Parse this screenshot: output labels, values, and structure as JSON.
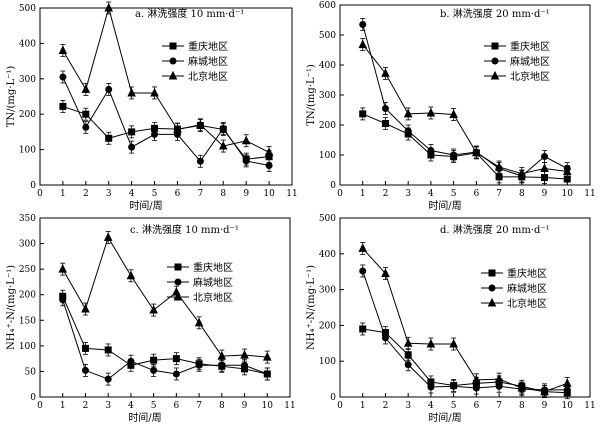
{
  "chart_data": [
    {
      "type": "line",
      "title": "a. 淋洗强度 10 mm·d⁻¹",
      "xlabel": "时间/周",
      "ylabel": "TN/(mg·L⁻¹)",
      "xlim": [
        0,
        11
      ],
      "ylim": [
        0,
        500
      ],
      "xticks": [
        0,
        1,
        2,
        3,
        4,
        5,
        6,
        7,
        8,
        9,
        10,
        11
      ],
      "yticks": [
        0,
        100,
        200,
        300,
        400,
        500
      ],
      "x": [
        1,
        2,
        3,
        4,
        5,
        6,
        7,
        8,
        9,
        10
      ],
      "legend_position": "top-right",
      "series": [
        {
          "name": "重庆地区",
          "marker": "square",
          "values": [
            222,
            200,
            132,
            150,
            160,
            158,
            168,
            157,
            73,
            80
          ]
        },
        {
          "name": "麻城地区",
          "marker": "circle",
          "values": [
            305,
            163,
            270,
            107,
            143,
            143,
            67,
            160,
            68,
            55
          ]
        },
        {
          "name": "北京地区",
          "marker": "triangle",
          "values": [
            380,
            270,
            500,
            260,
            260,
            157,
            170,
            110,
            125,
            92
          ]
        }
      ]
    },
    {
      "type": "line",
      "title": "b. 淋洗强度 20 mm·d⁻¹",
      "xlabel": "时间/周",
      "ylabel": "TN/(mg·L⁻¹)",
      "xlim": [
        0,
        11
      ],
      "ylim": [
        0,
        600
      ],
      "xticks": [
        0,
        1,
        2,
        3,
        4,
        5,
        6,
        7,
        8,
        9,
        10,
        11
      ],
      "yticks": [
        0,
        100,
        200,
        300,
        400,
        500,
        600
      ],
      "x": [
        1,
        2,
        3,
        4,
        5,
        6,
        7,
        8,
        9,
        10
      ],
      "legend_position": "top-right",
      "series": [
        {
          "name": "重庆地区",
          "marker": "square",
          "values": [
            237,
            205,
            170,
            100,
            95,
            107,
            27,
            27,
            25,
            20
          ]
        },
        {
          "name": "麻城地区",
          "marker": "circle",
          "values": [
            535,
            255,
            180,
            115,
            100,
            110,
            55,
            30,
            95,
            55
          ]
        },
        {
          "name": "北京地区",
          "marker": "triangle",
          "values": [
            468,
            372,
            237,
            240,
            235,
            108,
            60,
            38,
            55,
            45
          ]
        }
      ]
    },
    {
      "type": "line",
      "title": "c. 淋洗强度 10 mm·d⁻¹",
      "xlabel": "时间/周",
      "ylabel": "NH₄⁺-N/(mg·L⁻¹)",
      "xlim": [
        0,
        11
      ],
      "ylim": [
        0,
        350
      ],
      "xticks": [
        0,
        1,
        2,
        3,
        4,
        5,
        6,
        7,
        8,
        9,
        10,
        11
      ],
      "yticks": [
        0,
        50,
        100,
        150,
        200,
        250,
        300,
        350
      ],
      "x": [
        1,
        2,
        3,
        4,
        5,
        6,
        7,
        8,
        9,
        10
      ],
      "legend_position": "right",
      "series": [
        {
          "name": "重庆地区",
          "marker": "square",
          "values": [
            197,
            95,
            92,
            62,
            72,
            75,
            65,
            60,
            55,
            45
          ]
        },
        {
          "name": "麻城地区",
          "marker": "circle",
          "values": [
            190,
            52,
            35,
            70,
            52,
            45,
            62,
            62,
            62,
            45
          ]
        },
        {
          "name": "北京地区",
          "marker": "triangle",
          "values": [
            250,
            172,
            312,
            237,
            170,
            205,
            145,
            80,
            82,
            78
          ]
        }
      ]
    },
    {
      "type": "line",
      "title": "d. 淋洗强度 20 mm·d⁻¹",
      "xlabel": "时间/周",
      "ylabel": "NH₄⁺-N/(mg·L⁻¹)",
      "xlim": [
        0,
        11
      ],
      "ylim": [
        0,
        500
      ],
      "xticks": [
        0,
        1,
        2,
        3,
        4,
        5,
        6,
        7,
        8,
        9,
        10,
        11
      ],
      "yticks": [
        0,
        100,
        200,
        300,
        400,
        500
      ],
      "x": [
        1,
        2,
        3,
        4,
        5,
        6,
        7,
        8,
        9,
        10
      ],
      "legend_position": "right",
      "series": [
        {
          "name": "重庆地区",
          "marker": "square",
          "values": [
            190,
            180,
            118,
            42,
            32,
            38,
            42,
            30,
            15,
            12
          ]
        },
        {
          "name": "麻城地区",
          "marker": "circle",
          "values": [
            352,
            165,
            90,
            28,
            30,
            25,
            30,
            22,
            20,
            20
          ]
        },
        {
          "name": "北京地区",
          "marker": "triangle",
          "values": [
            415,
            345,
            150,
            148,
            148,
            48,
            50,
            25,
            15,
            38
          ]
        }
      ]
    }
  ]
}
